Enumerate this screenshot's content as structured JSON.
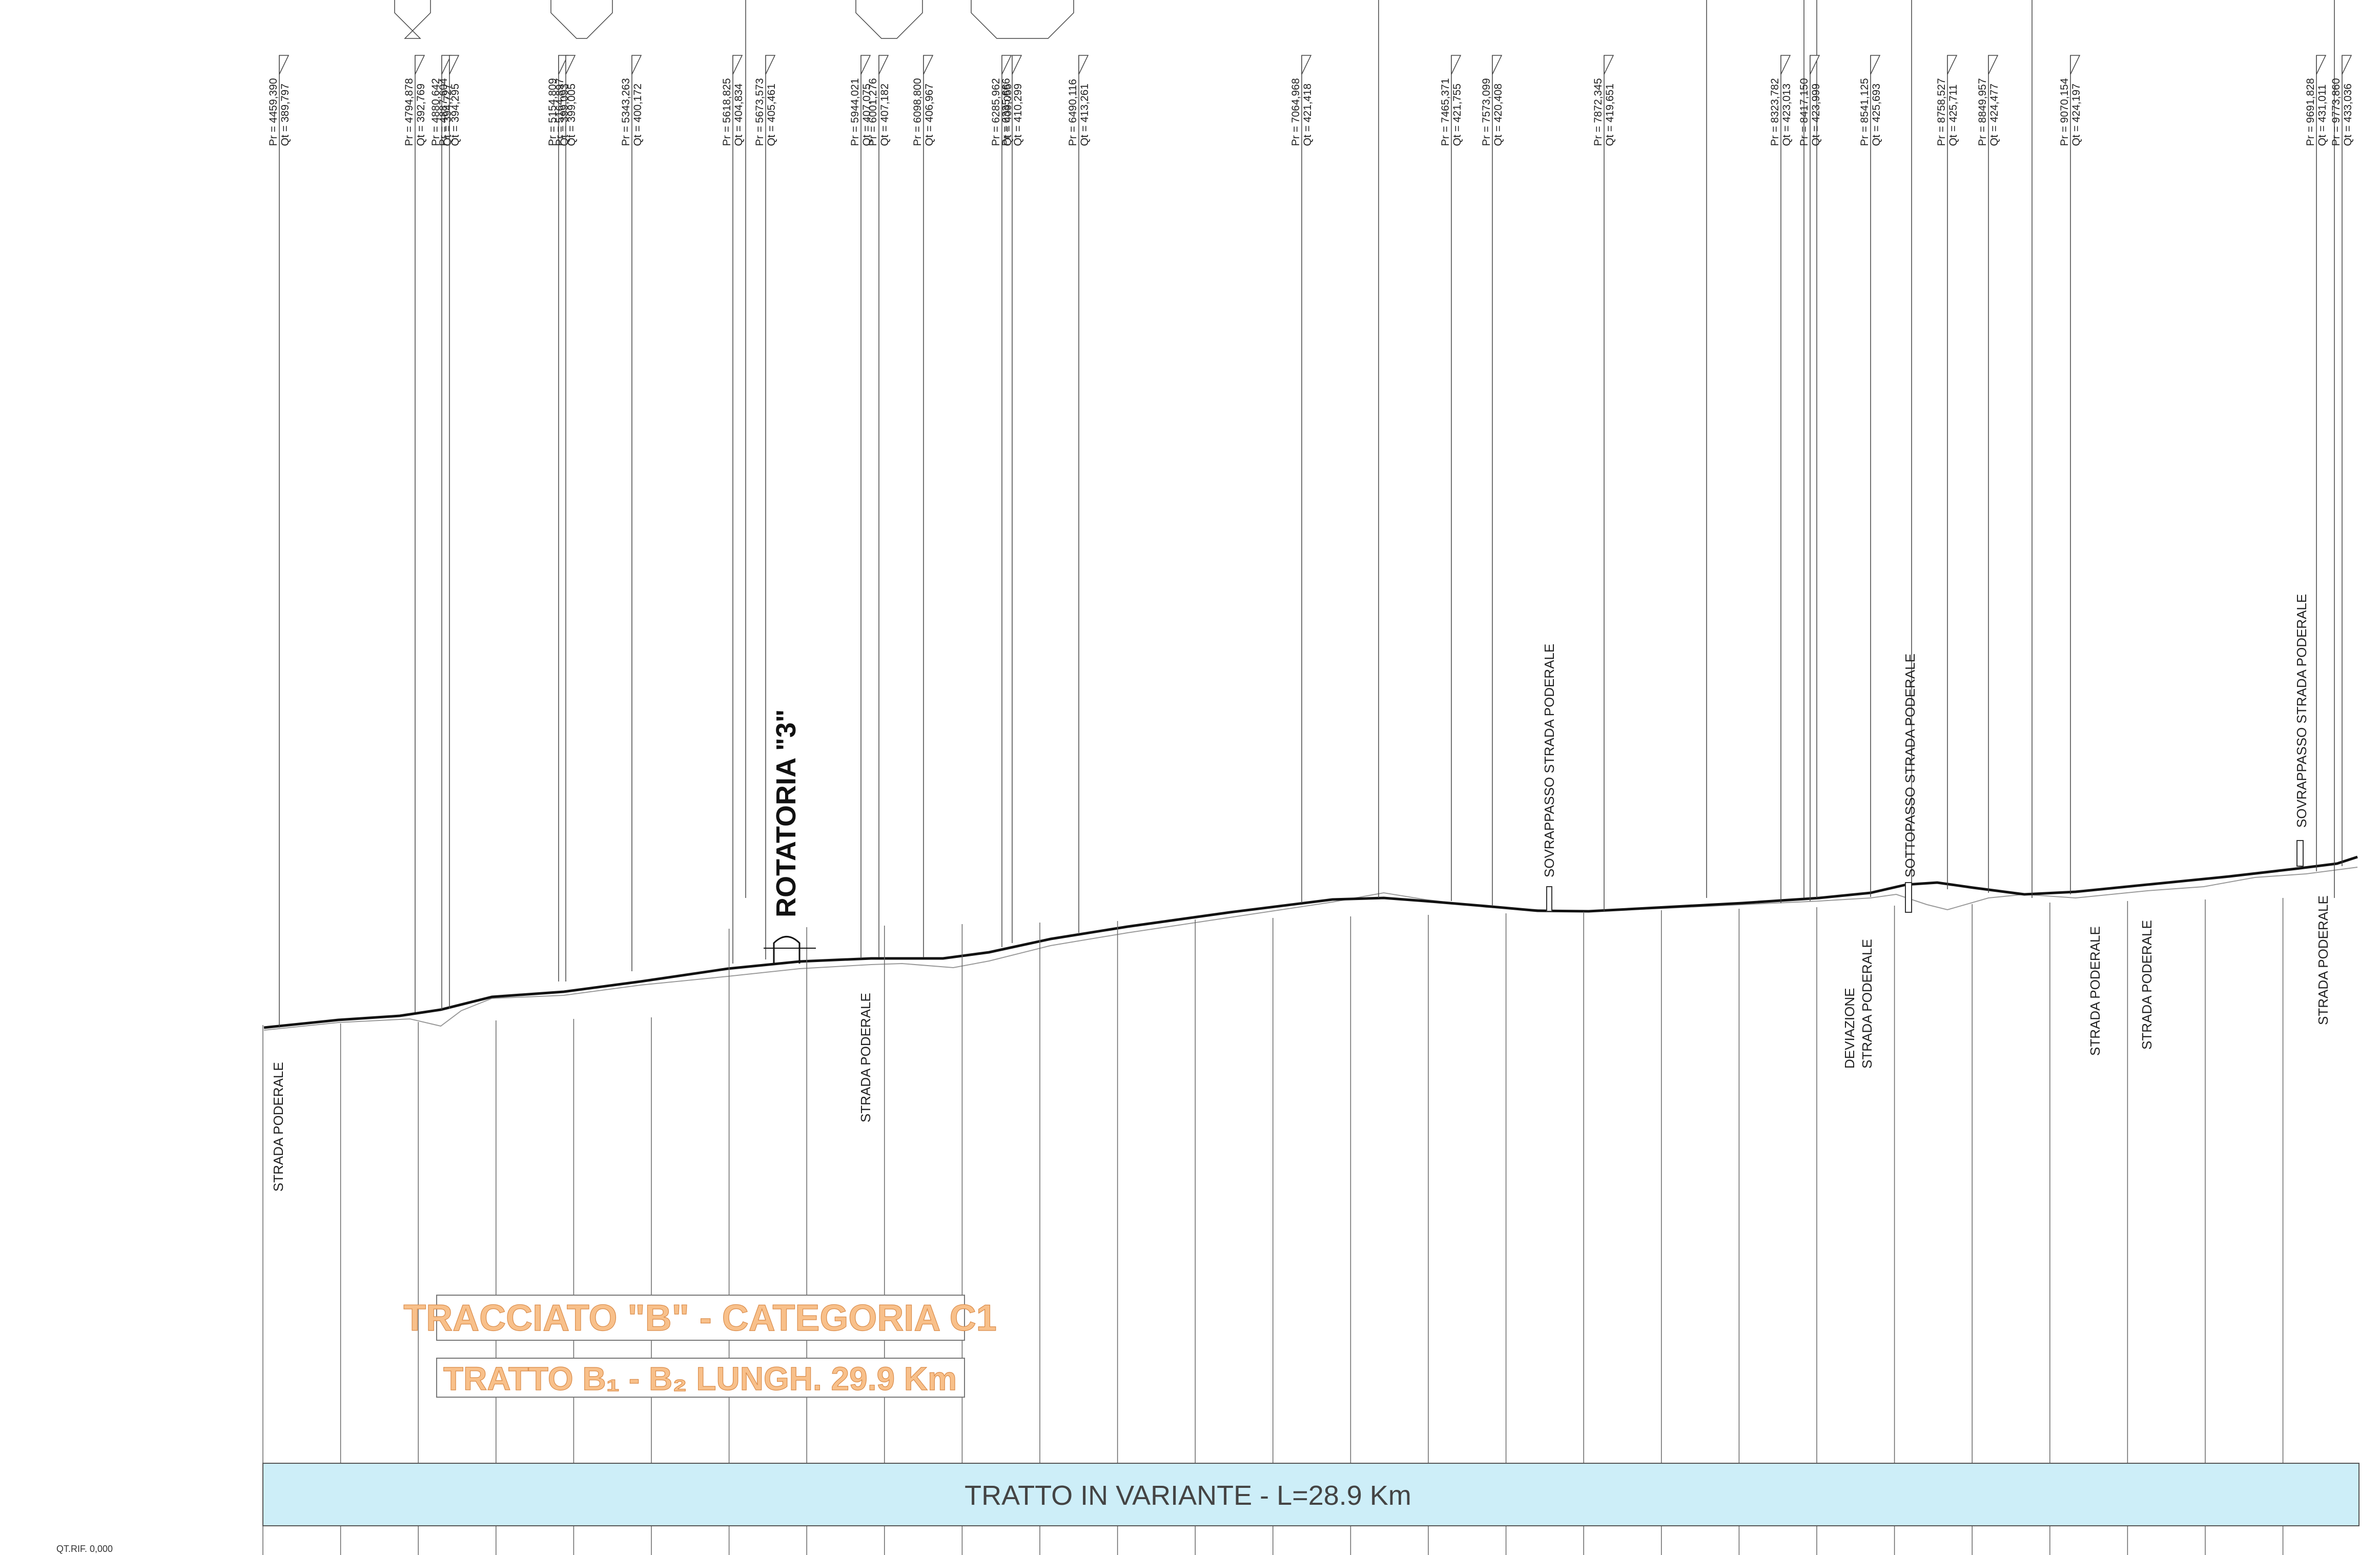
{
  "profile": {
    "chainage_marks": [
      {
        "pr": "Pr = 4459,390",
        "qt": "Qt = 389,797"
      },
      {
        "pr": "Pr = 4794,878",
        "qt": "Qt = 392,769"
      },
      {
        "pr": "Pr = 4880,642",
        "qt": "Qt = 394,727"
      },
      {
        "pr": "Pr = 4887,604",
        "qt": "Qt = 394,295"
      },
      {
        "pr": "Pr = 5154,809",
        "qt": "Qt = 399,093"
      },
      {
        "pr": "Pr = 5164,897",
        "qt": "Qt = 399,005"
      },
      {
        "pr": "Pr = 5343,263",
        "qt": "Qt = 400,172"
      },
      {
        "pr": "Pr = 5618,825",
        "qt": "Qt = 404,834"
      },
      {
        "pr": "Pr = 5673,573",
        "qt": "Qt = 405,461"
      },
      {
        "pr": "Pr = 5944,021",
        "qt": "Qt = 407,075"
      },
      {
        "pr": "Pr = 6001,276",
        "qt": "Qt = 407,182"
      },
      {
        "pr": "Pr = 6098,800",
        "qt": "Qt = 406,967"
      },
      {
        "pr": "Pr = 6285,962",
        "qt": "Qt = 409,055"
      },
      {
        "pr": "Pr = 6335,666",
        "qt": "Qt = 410,299"
      },
      {
        "pr": "Pr = 6490,116",
        "qt": "Qt = 413,261"
      },
      {
        "pr": "Pr = 7064,968",
        "qt": "Qt = 421,418"
      },
      {
        "pr": "Pr = 7465,371",
        "qt": "Qt = 421,755"
      },
      {
        "pr": "Pr = 7573,099",
        "qt": "Qt = 420,408"
      },
      {
        "pr": "Pr = 7872,345",
        "qt": "Qt = 419,651"
      },
      {
        "pr": "Pr = 8323,782",
        "qt": "Qt = 423,013"
      },
      {
        "pr": "Pr = 8417,150",
        "qt": "Qt = 423,999"
      },
      {
        "pr": "Pr = 8541,125",
        "qt": "Qt = 425,693"
      },
      {
        "pr": "Pr = 8758,527",
        "qt": "Qt = 425,711"
      },
      {
        "pr": "Pr = 8849,957",
        "qt": "Qt = 424,477"
      },
      {
        "pr": "Pr = 9070,154",
        "qt": "Qt = 424,197"
      },
      {
        "pr": "Pr = 9691,828",
        "qt": "Qt = 431,011"
      },
      {
        "pr": "Pr = 9773,860",
        "qt": "Qt = 433,036"
      }
    ],
    "structure_labels": [
      "SOVRAPPASSO STRADA PODERALE",
      "SOTTOPASSO STRADA PODERALE",
      "SOVRAPPASSO STRADA PODERALE"
    ],
    "road_labels": [
      "STRADA PODERALE",
      "STRADA PODERALE",
      "DEVIAZIONE",
      "STRADA PODERALE",
      "STRADA PODERALE",
      "STRADA PODERALE",
      "STRADA PODERALE"
    ],
    "roundabout_label": "ROTATORIA \"3\"",
    "title_line1": "TRACCIATO \"B\" - CATEGORIA C1",
    "title_line2": "TRATTO B₁  - B₂  LUNGH. 29.9 Km",
    "band_label": "TRATTO IN VARIANTE - L=28.9 Km",
    "reference_level": "QT.RIF. 0,000",
    "colors": {
      "band_fill": "#cdeef8",
      "title_fill": "#f8c08a",
      "line": "#222222"
    }
  }
}
